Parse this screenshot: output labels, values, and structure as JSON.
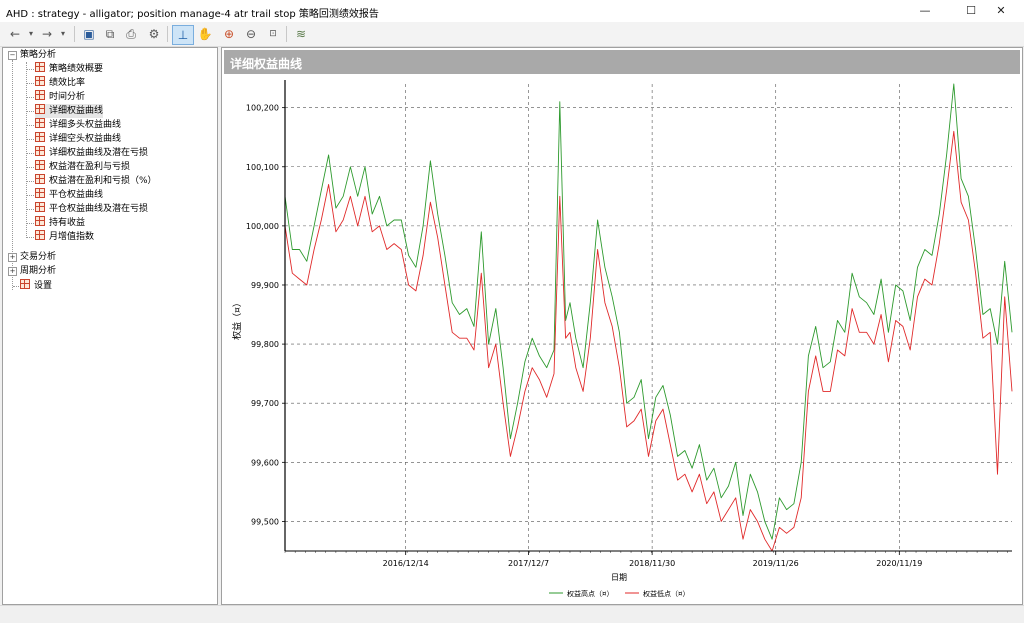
{
  "window": {
    "title": "AHD : strategy - alligator; position manage-4 atr trail stop 策略回测绩效报告",
    "minimize": "—",
    "maximize": "☐",
    "close": "✕"
  },
  "toolbar": {
    "buttons": [
      "back-icon",
      "dropdown-icon",
      "forward-icon",
      "dropdown-icon",
      "save-icon",
      "copy-icon",
      "print-icon",
      "settings-icon",
      "crosshair-icon",
      "hand-icon",
      "zoom-in-icon",
      "zoom-out-icon",
      "zoom-reset-icon",
      "chart-style-icon"
    ]
  },
  "tree": {
    "groups": [
      {
        "label": "策略分析",
        "expanded": true,
        "items": [
          "策略绩效概要",
          "绩效比率",
          "时间分析",
          "详细权益曲线",
          "详细多头权益曲线",
          "详细空头权益曲线",
          "详细权益曲线及潜在亏损",
          "权益潜在盈利与亏损",
          "权益潜在盈利和亏损（%）",
          "平仓权益曲线",
          "平仓权益曲线及潜在亏损",
          "持有收益",
          "月增值指数"
        ]
      },
      {
        "label": "交易分析",
        "expanded": false,
        "items": []
      },
      {
        "label": "周期分析",
        "expanded": false,
        "items": []
      }
    ],
    "settings_label": "设置",
    "selected": "详细权益曲线"
  },
  "panel": {
    "title": "详细权益曲线"
  },
  "chart_data": {
    "type": "line",
    "xlabel": "日期",
    "ylabel": "权益（¤）",
    "ylim": [
      99450,
      100240
    ],
    "yticks": [
      99500,
      99600,
      99700,
      99800,
      99900,
      100000,
      100100,
      100200
    ],
    "ytick_labels": [
      "99,500",
      "99,600",
      "99,700",
      "99,800",
      "99,900",
      "100,000",
      "100,100",
      "100,200"
    ],
    "x_index_range": [
      0,
      100
    ],
    "xticks": [
      {
        "pos": 16.6,
        "label": "2016/12/14"
      },
      {
        "pos": 33.5,
        "label": "2017/12/7"
      },
      {
        "pos": 50.5,
        "label": "2018/11/30"
      },
      {
        "pos": 67.5,
        "label": "2019/11/26"
      },
      {
        "pos": 84.5,
        "label": "2020/11/19"
      }
    ],
    "series": [
      {
        "name": "权益高点（¤）",
        "color": "#2e9a2e",
        "x": [
          0,
          1,
          2,
          3,
          4,
          5,
          6,
          7,
          8,
          9,
          10,
          11,
          12,
          13,
          14,
          15,
          16,
          17,
          18,
          19,
          20,
          21,
          22,
          23,
          24,
          25,
          26,
          27,
          28,
          29,
          30,
          31,
          32,
          33,
          34,
          35,
          36,
          37,
          37.8,
          38.6,
          39.2,
          40,
          41,
          42,
          43,
          44,
          45,
          46,
          47,
          48,
          49,
          50,
          51,
          52,
          53,
          54,
          55,
          56,
          57,
          58,
          59,
          60,
          61,
          62,
          63,
          64,
          65,
          66,
          67,
          68,
          69,
          70,
          71,
          72,
          73,
          74,
          75,
          76,
          77,
          78,
          79,
          80,
          81,
          82,
          83,
          84,
          85,
          86,
          87,
          88,
          89,
          90,
          91,
          92,
          93,
          94,
          95,
          96,
          97,
          98,
          99,
          100
        ],
        "y": [
          100050,
          99960,
          99960,
          99940,
          100000,
          100060,
          100120,
          100030,
          100050,
          100100,
          100050,
          100100,
          100020,
          100050,
          100000,
          100010,
          100010,
          99950,
          99930,
          100000,
          100110,
          100020,
          99950,
          99870,
          99850,
          99860,
          99830,
          99990,
          99800,
          99860,
          99760,
          99640,
          99700,
          99770,
          99810,
          99780,
          99760,
          99790,
          100210,
          99840,
          99870,
          99810,
          99760,
          99870,
          100010,
          99930,
          99880,
          99820,
          99700,
          99710,
          99740,
          99640,
          99710,
          99730,
          99680,
          99610,
          99620,
          99590,
          99630,
          99570,
          99590,
          99540,
          99560,
          99600,
          99510,
          99580,
          99550,
          99500,
          99470,
          99540,
          99520,
          99530,
          99600,
          99780,
          99830,
          99760,
          99770,
          99840,
          99820,
          99920,
          99880,
          99870,
          99850,
          99910,
          99820,
          99900,
          99890,
          99840,
          99930,
          99960,
          99950,
          100020,
          100120,
          100240,
          100080,
          100050,
          99960,
          99850,
          99860,
          99800,
          99940,
          99820
        ]
      },
      {
        "name": "权益低点（¤）",
        "color": "#e02a2a",
        "x": [
          0,
          1,
          2,
          3,
          4,
          5,
          6,
          7,
          8,
          9,
          10,
          11,
          12,
          13,
          14,
          15,
          16,
          17,
          18,
          19,
          20,
          21,
          22,
          23,
          24,
          25,
          26,
          27,
          28,
          29,
          30,
          31,
          32,
          33,
          34,
          35,
          36,
          37,
          37.8,
          38.6,
          39.2,
          40,
          41,
          42,
          43,
          44,
          45,
          46,
          47,
          48,
          49,
          50,
          51,
          52,
          53,
          54,
          55,
          56,
          57,
          58,
          59,
          60,
          61,
          62,
          63,
          64,
          65,
          66,
          67,
          68,
          69,
          70,
          71,
          72,
          73,
          74,
          75,
          76,
          77,
          78,
          79,
          80,
          81,
          82,
          83,
          84,
          85,
          86,
          87,
          88,
          89,
          90,
          91,
          92,
          93,
          94,
          95,
          96,
          97,
          98,
          99,
          100
        ],
        "y": [
          100000,
          99920,
          99910,
          99900,
          99960,
          100010,
          100070,
          99990,
          100010,
          100050,
          100000,
          100050,
          99990,
          100000,
          99960,
          99970,
          99960,
          99900,
          99890,
          99950,
          100040,
          99980,
          99900,
          99820,
          99810,
          99810,
          99790,
          99920,
          99760,
          99800,
          99700,
          99610,
          99660,
          99720,
          99760,
          99740,
          99710,
          99750,
          100050,
          99810,
          99820,
          99760,
          99720,
          99810,
          99960,
          99870,
          99830,
          99760,
          99660,
          99670,
          99690,
          99610,
          99670,
          99690,
          99630,
          99570,
          99580,
          99550,
          99580,
          99530,
          99550,
          99500,
          99520,
          99540,
          99470,
          99520,
          99500,
          99470,
          99450,
          99490,
          99480,
          99490,
          99540,
          99720,
          99780,
          99720,
          99720,
          99790,
          99780,
          99860,
          99820,
          99820,
          99800,
          99850,
          99770,
          99840,
          99830,
          99790,
          99880,
          99910,
          99900,
          99970,
          100060,
          100160,
          100040,
          100010,
          99920,
          99810,
          99820,
          99580,
          99880,
          99720
        ]
      }
    ],
    "legend": "bottom-center",
    "grid": true
  }
}
